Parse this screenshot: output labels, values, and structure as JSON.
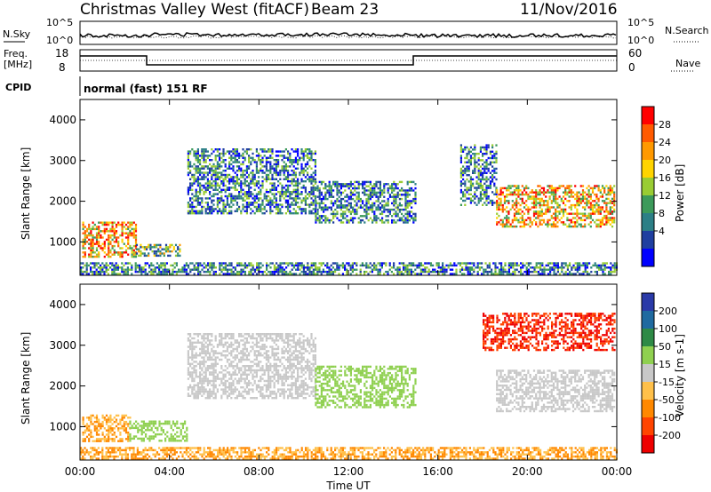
{
  "header": {
    "title": "Christmas Valley West (fitACF)",
    "beam": "Beam 23",
    "date": "11/Nov/2016"
  },
  "top_panels": {
    "nsky_label": "N.Sky",
    "nsearch_label": "N.Search",
    "noise_ticks_left": [
      "10^5",
      "10^0"
    ],
    "noise_ticks_right": [
      "10^5",
      "10^0"
    ],
    "freq_label": "Freq.",
    "freq_unit": "[MHz]",
    "freq_ticks": [
      "18",
      "8"
    ],
    "nave_label": "Nave",
    "nave_ticks": [
      "60",
      "0"
    ],
    "cpid_label": "CPID",
    "cpid_text": "normal (fast) 151 RF"
  },
  "chart_data": [
    {
      "type": "heatmap",
      "name": "power",
      "ylabel": "Slant Range [km]",
      "ylim": [
        180,
        4500
      ],
      "yticks": [
        "4000",
        "3000",
        "2000",
        "1000"
      ],
      "yticks_values": [
        4000,
        3000,
        2000,
        1000
      ],
      "xlim": [
        0,
        24
      ],
      "colorbar_label": "Power [dB]",
      "colorbar_ticks": [
        "28",
        "24",
        "20",
        "16",
        "12",
        "8",
        "4"
      ],
      "colorbar_colors": [
        "#ff0000",
        "#ff5a00",
        "#ff9900",
        "#ffd400",
        "#99cc33",
        "#3c9a5a",
        "#2c7f86",
        "#1f3fa0",
        "#0000ff"
      ],
      "regions": [
        {
          "x": [
            0.1,
            2.5
          ],
          "y": [
            650,
            1500
          ],
          "level": "high"
        },
        {
          "x": [
            2.5,
            4.5
          ],
          "y": [
            650,
            950
          ],
          "level": "mid"
        },
        {
          "x": [
            4.8,
            10.5
          ],
          "y": [
            1700,
            3300
          ],
          "level": "low"
        },
        {
          "x": [
            10.5,
            15.0
          ],
          "y": [
            1500,
            2500
          ],
          "level": "low"
        },
        {
          "x": [
            17.0,
            18.6
          ],
          "y": [
            1900,
            3400
          ],
          "level": "low"
        },
        {
          "x": [
            18.6,
            23.9
          ],
          "y": [
            1400,
            2400
          ],
          "level": "high"
        },
        {
          "x": [
            0.0,
            24.0
          ],
          "y": [
            200,
            500
          ],
          "level": "low"
        }
      ]
    },
    {
      "type": "heatmap",
      "name": "velocity",
      "ylabel": "Slant Range [km]",
      "ylim": [
        180,
        4500
      ],
      "yticks": [
        "4000",
        "3000",
        "2000",
        "1000"
      ],
      "yticks_values": [
        4000,
        3000,
        2000,
        1000
      ],
      "xlim": [
        0,
        24
      ],
      "xticks": [
        "00:00",
        "04:00",
        "08:00",
        "12:00",
        "16:00",
        "20:00",
        "00:00"
      ],
      "xticks_values": [
        0,
        4,
        8,
        12,
        16,
        20,
        24
      ],
      "xlabel": "Time UT",
      "colorbar_label": "Velocity [m s-1]",
      "colorbar_ticks": [
        "200",
        "100",
        "50",
        "15",
        "-15",
        "-50",
        "-100",
        "-200"
      ],
      "colorbar_colors": [
        "#2a3aa8",
        "#1f6aa0",
        "#2e8a46",
        "#8fd050",
        "#c8c8c8",
        "#ffc04a",
        "#ff8800",
        "#ff4400",
        "#ee0000"
      ],
      "regions": [
        {
          "x": [
            0.1,
            2.2
          ],
          "y": [
            650,
            1300
          ],
          "level": "-50"
        },
        {
          "x": [
            2.2,
            4.8
          ],
          "y": [
            650,
            1150
          ],
          "level": "15"
        },
        {
          "x": [
            4.8,
            10.5
          ],
          "y": [
            1700,
            3300
          ],
          "level": "-15"
        },
        {
          "x": [
            10.5,
            15.0
          ],
          "y": [
            1500,
            2500
          ],
          "level": "15"
        },
        {
          "x": [
            18.6,
            23.9
          ],
          "y": [
            1400,
            2400
          ],
          "level": "-15"
        },
        {
          "x": [
            18.0,
            23.9
          ],
          "y": [
            2900,
            3800
          ],
          "level": "-200"
        },
        {
          "x": [
            0.0,
            24.0
          ],
          "y": [
            200,
            500
          ],
          "level": "-50"
        }
      ]
    }
  ]
}
